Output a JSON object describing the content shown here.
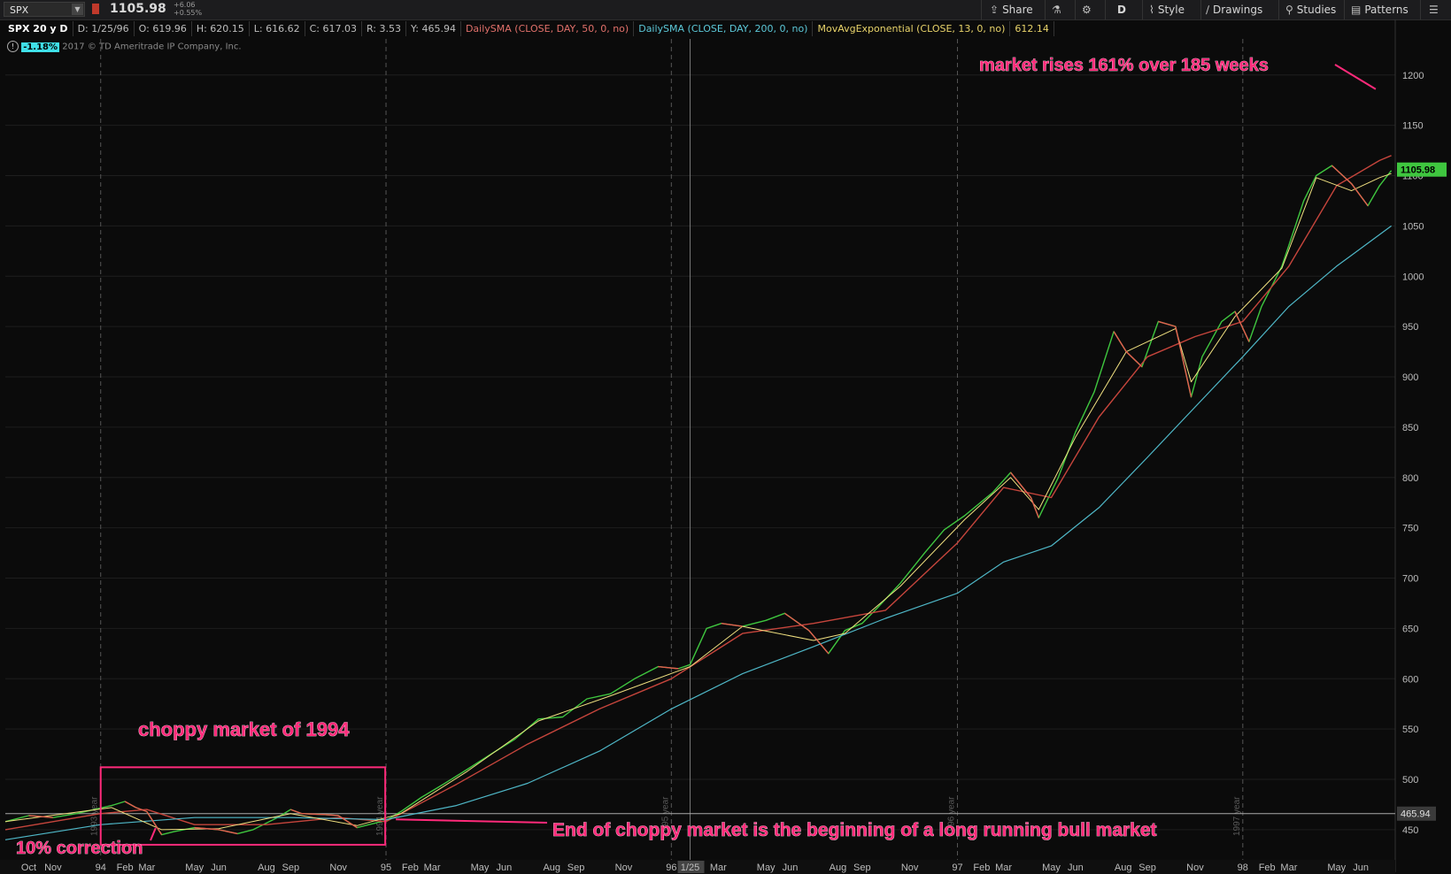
{
  "toolbar": {
    "symbol": "SPX",
    "last_price": "1105.98",
    "change_abs": "+6.06",
    "change_pct": "+0.55%",
    "share_label": "Share",
    "aggregation_label": "D",
    "style_label": "Style",
    "drawings_label": "Drawings",
    "studies_label": "Studies",
    "patterns_label": "Patterns"
  },
  "infobar": {
    "title": "SPX 20 y D",
    "date": "D: 1/25/96",
    "open": "O: 619.96",
    "high": "H: 620.15",
    "low": "L: 616.62",
    "close": "C: 617.03",
    "range": "R: 3.53",
    "y": "Y: 465.94",
    "sma50": "DailySMA (CLOSE, DAY, 50, 0, no)",
    "sma200": "DailySMA (CLOSE, DAY, 200, 0, no)",
    "ema": "MovAvgExponential (CLOSE, 13, 0, no)",
    "ema_value": "612.14"
  },
  "sub": {
    "percent": "-1.18%",
    "copyright": "2017 © TD Ameritrade IP Company, Inc."
  },
  "colors": {
    "background": "#0b0b0b",
    "up_candle": "#3fc63f",
    "down_candle": "#e55c4f",
    "sma50": "#c6453c",
    "sma200": "#4fb8c8",
    "ema13": "#f0e080",
    "annotation": "#ff2a7a",
    "grid": "#555555"
  },
  "chart_data": {
    "type": "line",
    "title": "SPX 20 y D",
    "instrument": "SPX",
    "ylim": [
      420,
      1220
    ],
    "y_ticks": [
      450,
      500,
      550,
      600,
      650,
      700,
      750,
      800,
      850,
      900,
      950,
      1000,
      1050,
      1100,
      1150,
      1200
    ],
    "x_tick_labels": [
      "Oct",
      "Nov",
      "94",
      "Feb",
      "Mar",
      "May",
      "Jun",
      "Aug",
      "Sep",
      "Nov",
      "95",
      "Feb",
      "Mar",
      "May",
      "Jun",
      "Aug",
      "Sep",
      "Nov",
      "96",
      "1/25",
      "Mar",
      "May",
      "Jun",
      "Aug",
      "Sep",
      "Nov",
      "97",
      "Feb",
      "Mar",
      "May",
      "Jun",
      "Aug",
      "Sep",
      "Nov",
      "98",
      "Feb",
      "Mar",
      "May",
      "Jun"
    ],
    "x_tick_dates": [
      "1993-10-01",
      "1993-11-01",
      "1994-01-01",
      "1994-02-01",
      "1994-03-01",
      "1994-05-01",
      "1994-06-01",
      "1994-08-01",
      "1994-09-01",
      "1994-11-01",
      "1995-01-01",
      "1995-02-01",
      "1995-03-01",
      "1995-05-01",
      "1995-06-01",
      "1995-08-01",
      "1995-09-01",
      "1995-11-01",
      "1996-01-01",
      "1996-01-25",
      "1996-03-01",
      "1996-05-01",
      "1996-06-01",
      "1996-08-01",
      "1996-09-01",
      "1996-11-01",
      "1997-01-01",
      "1997-02-01",
      "1997-03-01",
      "1997-05-01",
      "1997-06-01",
      "1997-08-01",
      "1997-09-01",
      "1997-11-01",
      "1998-01-01",
      "1998-02-01",
      "1998-03-01",
      "1998-05-01",
      "1998-06-01"
    ],
    "x_range": [
      "1993-09-01",
      "1998-07-15"
    ],
    "year_dividers": [
      "1994-01-01",
      "1995-01-01",
      "1996-01-01",
      "1997-01-01",
      "1998-01-01"
    ],
    "year_divider_labels": [
      "1993 year",
      "1994 year",
      "1995 year",
      "1996 year",
      "1997 year"
    ],
    "crosshair_date": "1996-01-25",
    "crosshair_y": 465.94,
    "crosshair_y_label": "465.94",
    "last_price_label": "1105.98",
    "last_price": 1105.98,
    "grid": true,
    "series": [
      {
        "name": "SPX",
        "x": [
          "1993-09-01",
          "1993-10-01",
          "1993-11-01",
          "1993-12-01",
          "1994-01-15",
          "1994-02-01",
          "1994-02-15",
          "1994-03-01",
          "1994-03-20",
          "1994-04-05",
          "1994-05-01",
          "1994-06-01",
          "1994-06-25",
          "1994-07-15",
          "1994-08-15",
          "1994-09-01",
          "1994-09-15",
          "1994-10-15",
          "1994-11-01",
          "1994-11-25",
          "1994-12-10",
          "1995-01-01",
          "1995-01-20",
          "1995-02-15",
          "1995-03-15",
          "1995-04-15",
          "1995-05-15",
          "1995-06-15",
          "1995-07-15",
          "1995-08-15",
          "1995-09-15",
          "1995-10-15",
          "1995-11-15",
          "1995-12-15",
          "1996-01-10",
          "1996-01-25",
          "1996-02-15",
          "1996-03-05",
          "1996-04-01",
          "1996-05-01",
          "1996-05-25",
          "1996-06-25",
          "1996-07-20",
          "1996-08-10",
          "1996-09-01",
          "1996-09-20",
          "1996-10-20",
          "1996-11-20",
          "1996-12-15",
          "1997-01-10",
          "1997-02-15",
          "1997-03-10",
          "1997-04-05",
          "1997-04-15",
          "1997-05-10",
          "1997-06-01",
          "1997-06-25",
          "1997-07-20",
          "1997-08-05",
          "1997-08-25",
          "1997-09-15",
          "1997-10-07",
          "1997-10-27",
          "1997-11-10",
          "1997-12-05",
          "1997-12-22",
          "1998-01-09",
          "1998-01-25",
          "1998-02-20",
          "1998-03-20",
          "1998-04-05",
          "1998-04-25",
          "1998-05-20",
          "1998-06-10",
          "1998-06-25",
          "1998-07-10"
        ],
        "values": [
          458,
          464,
          462,
          466,
          474,
          478,
          472,
          468,
          445,
          448,
          452,
          450,
          446,
          450,
          462,
          470,
          466,
          465,
          464,
          452,
          455,
          459,
          468,
          482,
          495,
          510,
          525,
          540,
          560,
          562,
          580,
          585,
          600,
          612,
          610,
          614,
          650,
          655,
          652,
          658,
          665,
          648,
          625,
          648,
          655,
          670,
          695,
          725,
          748,
          762,
          785,
          805,
          780,
          760,
          800,
          845,
          885,
          945,
          925,
          910,
          955,
          950,
          880,
          920,
          955,
          965,
          935,
          970,
          1010,
          1075,
          1100,
          1110,
          1092,
          1070,
          1090,
          1105
        ]
      },
      {
        "name": "DailySMA 50",
        "x": [
          "1993-09-01",
          "1994-01-01",
          "1994-03-01",
          "1994-05-01",
          "1994-08-01",
          "1994-11-01",
          "1995-01-01",
          "1995-04-01",
          "1995-07-01",
          "1995-10-01",
          "1996-01-01",
          "1996-04-01",
          "1996-07-01",
          "1996-10-01",
          "1997-01-01",
          "1997-03-01",
          "1997-05-01",
          "1997-07-01",
          "1997-09-01",
          "1997-11-01",
          "1998-01-01",
          "1998-03-01",
          "1998-05-01",
          "1998-06-25",
          "1998-07-10"
        ],
        "values": [
          450,
          466,
          470,
          455,
          455,
          462,
          458,
          495,
          535,
          570,
          600,
          645,
          655,
          668,
          735,
          790,
          780,
          860,
          920,
          940,
          955,
          1010,
          1090,
          1115,
          1120
        ]
      },
      {
        "name": "DailySMA 200",
        "x": [
          "1993-09-01",
          "1994-01-01",
          "1994-05-01",
          "1994-09-01",
          "1995-01-01",
          "1995-04-01",
          "1995-07-01",
          "1995-10-01",
          "1996-01-01",
          "1996-04-01",
          "1996-07-01",
          "1996-10-01",
          "1997-01-01",
          "1997-03-01",
          "1997-05-01",
          "1997-07-01",
          "1997-09-01",
          "1997-11-01",
          "1998-01-01",
          "1998-03-01",
          "1998-05-01",
          "1998-07-10"
        ],
        "values": [
          440,
          455,
          462,
          462,
          460,
          474,
          496,
          528,
          570,
          605,
          632,
          660,
          685,
          716,
          732,
          770,
          820,
          870,
          920,
          970,
          1010,
          1050
        ]
      },
      {
        "name": "MovAvgExponential 13",
        "x": [
          "1993-09-01",
          "1994-01-15",
          "1994-03-20",
          "1994-06-01",
          "1994-09-01",
          "1994-11-25",
          "1995-01-20",
          "1995-04-15",
          "1995-07-15",
          "1995-10-15",
          "1996-01-25",
          "1996-04-01",
          "1996-07-01",
          "1996-08-10",
          "1996-10-20",
          "1997-01-10",
          "1997-03-10",
          "1997-04-15",
          "1997-06-01",
          "1997-08-05",
          "1997-10-07",
          "1997-10-27",
          "1997-12-22",
          "1998-02-20",
          "1998-04-05",
          "1998-05-20",
          "1998-06-25",
          "1998-07-10"
        ],
        "values": [
          458,
          472,
          450,
          451,
          466,
          454,
          466,
          508,
          558,
          583,
          612,
          652,
          638,
          645,
          692,
          758,
          800,
          768,
          840,
          925,
          948,
          895,
          960,
          1008,
          1098,
          1085,
          1098,
          1102
        ]
      }
    ],
    "annotations": [
      {
        "text": "market rises 161% over 185 weeks",
        "date": "1998-06-20",
        "value": 1200
      },
      {
        "text": "choppy market of 1994",
        "date": "1994-01-01",
        "value": 505
      },
      {
        "text": "10% correction",
        "date": "1994-03-10",
        "value": 448
      },
      {
        "text": "End of choppy market is the beginning of a long running bull market",
        "date": "1994-12-31",
        "value": 462
      }
    ],
    "highlight_box": {
      "x_start": "1994-01-01",
      "x_end": "1994-12-31",
      "y_low": 435,
      "y_high": 512
    }
  }
}
